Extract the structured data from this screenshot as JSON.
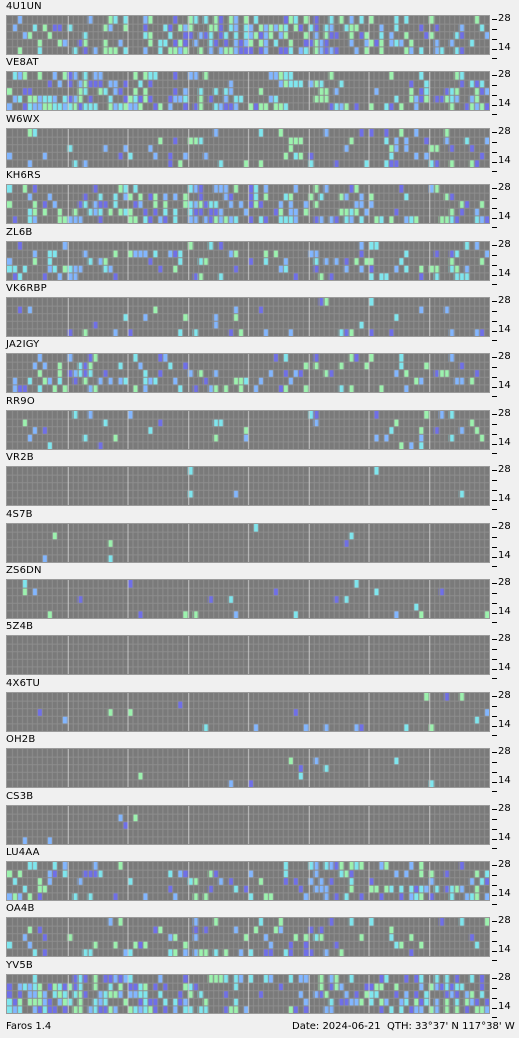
{
  "stations": [
    {
      "call": "4U1UN",
      "band_top": "28",
      "band_bottom": "14"
    },
    {
      "call": "VE8AT",
      "band_top": "28",
      "band_bottom": "14"
    },
    {
      "call": "W6WX",
      "band_top": "28",
      "band_bottom": "14"
    },
    {
      "call": "KH6RS",
      "band_top": "28",
      "band_bottom": "14"
    },
    {
      "call": "ZL6B",
      "band_top": "28",
      "band_bottom": "14"
    },
    {
      "call": "VK6RBP",
      "band_top": "28",
      "band_bottom": "14"
    },
    {
      "call": "JA2IGY",
      "band_top": "28",
      "band_bottom": "14"
    },
    {
      "call": "RR9O",
      "band_top": "28",
      "band_bottom": "14"
    },
    {
      "call": "VR2B",
      "band_top": "28",
      "band_bottom": "14"
    },
    {
      "call": "4S7B",
      "band_top": "28",
      "band_bottom": "14"
    },
    {
      "call": "ZS6DN",
      "band_top": "28",
      "band_bottom": "14"
    },
    {
      "call": "5Z4B",
      "band_top": "28",
      "band_bottom": "14"
    },
    {
      "call": "4X6TU",
      "band_top": "28",
      "band_bottom": "14"
    },
    {
      "call": "OH2B",
      "band_top": "28",
      "band_bottom": "14"
    },
    {
      "call": "CS3B",
      "band_top": "28",
      "band_bottom": "14"
    },
    {
      "call": "LU4AA",
      "band_top": "28",
      "band_bottom": "14"
    },
    {
      "call": "OA4B",
      "band_top": "28",
      "band_bottom": "14"
    },
    {
      "call": "YV5B",
      "band_top": "28",
      "band_bottom": "14"
    }
  ],
  "activity": [
    0.7,
    0.75,
    0.35,
    0.72,
    0.45,
    0.2,
    0.4,
    0.12,
    0.02,
    0.02,
    0.1,
    0.0,
    0.05,
    0.05,
    0.02,
    0.5,
    0.35,
    0.85
  ],
  "status": {
    "app": "Faros 1.4",
    "date": "Date: 2024-06-21",
    "qth": "QTH: 33°37' N  117°38' W"
  },
  "colors": {
    "grid_bg": "#7a7a7a",
    "cell_lines": "#8e8e8e",
    "hour_lines": "#c8c8c8",
    "signal_weak": "#6f6fe8",
    "signal_mid": "#82b6ff",
    "signal_good": "#7fe6ee",
    "signal_strong": "#9cf2ae"
  }
}
